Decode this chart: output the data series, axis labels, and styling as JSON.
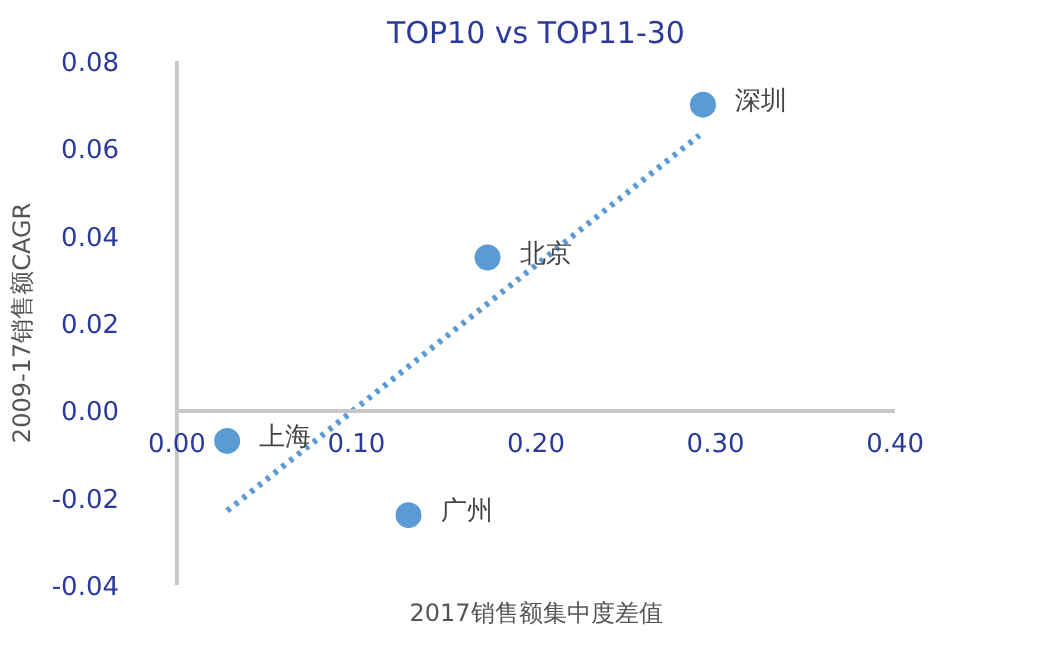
{
  "chart_data": {
    "type": "scatter",
    "title": "TOP10 vs TOP11-30",
    "xlabel": "2017销售额集中度差值",
    "ylabel": "2009-17销售额CAGR",
    "x": [
      0.028,
      0.129,
      0.173,
      0.293
    ],
    "series": [
      {
        "color": "#5b9bd5",
        "values": [
          -0.007,
          -0.024,
          0.035,
          0.07
        ],
        "marker": "circle"
      },
      {
        "type": "line",
        "color": "#5b9bd5",
        "x": [
          0.028,
          0.291
        ],
        "values": [
          -0.023,
          0.063
        ],
        "line_style": "dotted",
        "marker": "none"
      }
    ],
    "annotations": [
      {
        "text": "上海",
        "x": 0.028,
        "y": -0.007
      },
      {
        "text": "广州",
        "x": 0.129,
        "y": -0.024
      },
      {
        "text": "北京",
        "x": 0.173,
        "y": 0.035
      },
      {
        "text": "深圳",
        "x": 0.293,
        "y": 0.07
      }
    ],
    "xlim": [
      0,
      0.4
    ],
    "ylim": [
      -0.04,
      0.08
    ],
    "xticks": [
      {
        "value": 0,
        "label": "0.00"
      },
      {
        "value": 0.1,
        "label": "0.10"
      },
      {
        "value": 0.2,
        "label": "0.20"
      },
      {
        "value": 0.3,
        "label": "0.30"
      },
      {
        "value": 0.4,
        "label": "0.40"
      }
    ],
    "yticks": [
      {
        "value": -0.04,
        "label": "-0.04"
      },
      {
        "value": -0.02,
        "label": "-0.02"
      },
      {
        "value": 0,
        "label": "0.00"
      },
      {
        "value": 0.02,
        "label": "0.02"
      },
      {
        "value": 0.04,
        "label": "0.04"
      },
      {
        "value": 0.06,
        "label": "0.06"
      },
      {
        "value": 0.08,
        "label": "0.08"
      }
    ],
    "grid": false
  }
}
